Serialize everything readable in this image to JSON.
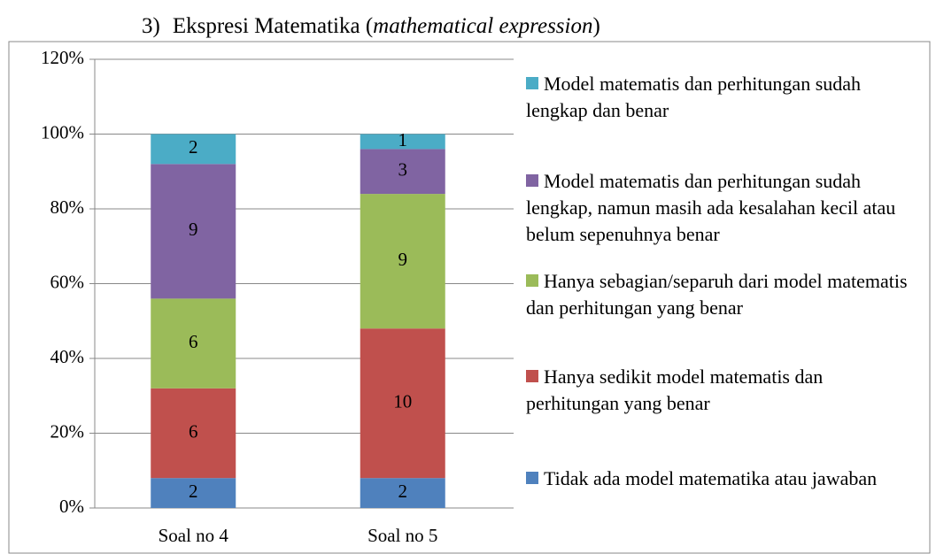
{
  "chart_data": {
    "type": "bar",
    "stacking": "percent",
    "title_number": "3)",
    "title": [
      "Ekspresi Matematika (",
      "mathematical expression",
      ")"
    ],
    "categories": [
      "Soal no 4",
      "Soal no 5"
    ],
    "series": [
      {
        "name": "Tidak ada model matematika atau jawaban",
        "color": "#4f81bd",
        "values": [
          2,
          2
        ]
      },
      {
        "name": "Hanya sedikit model matematis dan perhitungan yang benar",
        "color": "#c0504d",
        "values": [
          6,
          10
        ]
      },
      {
        "name": "Hanya sebagian/separuh dari model matematis dan perhitungan yang benar",
        "color": "#9bbb59",
        "values": [
          6,
          9
        ]
      },
      {
        "name": "Model matematis dan perhitungan sudah lengkap, namun masih ada kesalahan kecil atau belum sepenuhnya benar",
        "color": "#8064a2",
        "values": [
          9,
          3
        ]
      },
      {
        "name": "Model matematis dan perhitungan sudah lengkap dan benar",
        "color": "#4bacc6",
        "values": [
          2,
          1
        ]
      }
    ],
    "ylim": [
      0,
      120
    ],
    "yticks": [
      {
        "value": 0,
        "label": "0%"
      },
      {
        "value": 20,
        "label": "20%"
      },
      {
        "value": 40,
        "label": "40%"
      },
      {
        "value": 60,
        "label": "60%"
      },
      {
        "value": 80,
        "label": "80%"
      },
      {
        "value": 100,
        "label": "100%"
      },
      {
        "value": 120,
        "label": "120%"
      }
    ],
    "grid": true,
    "legend": "right"
  }
}
